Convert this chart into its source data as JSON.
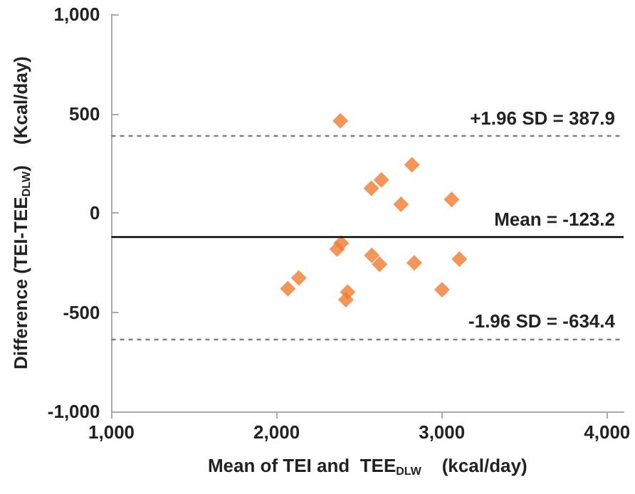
{
  "chart_data": {
    "type": "scatter",
    "xlabel": "Mean of TEI and  TEE$_{DLW}$    (kcal/day)",
    "ylabel": "Difference (TEI-TEE$_{DLW}$)    (Kcal/day)",
    "x": [
      2386,
      2819,
      2634,
      2573,
      2753,
      3059,
      2391,
      2366,
      2576,
      2623,
      2833,
      3106,
      2134,
      2068,
      3001,
      2430,
      2419
    ],
    "series": [
      {
        "color": "#f07c30",
        "values": [
          463,
          242,
          166,
          124,
          43,
          67,
          -152,
          -183,
          -214,
          -259,
          -252,
          -233,
          -328,
          -382,
          -387,
          -399,
          -437
        ]
      }
    ],
    "xlim": [
      1000,
      4100
    ],
    "xticks": [
      {
        "value": 1000,
        "label": "1,000"
      },
      {
        "value": 2000,
        "label": "2,000"
      },
      {
        "value": 3000,
        "label": "3,000"
      },
      {
        "value": 4000,
        "label": "4,000"
      }
    ],
    "ylim": [
      -1000,
      1000
    ],
    "yticks": [
      {
        "value": -1000,
        "label": "-1,000"
      },
      -500,
      0,
      500,
      {
        "value": 1000,
        "label": "1,000"
      }
    ],
    "ref_lines": [
      {
        "axis": "y",
        "value": 387.9,
        "label": "+1.96 SD = 387.9",
        "color": "#808080",
        "line_style": "dashed"
      },
      {
        "axis": "y",
        "value": -123.2,
        "label": "Mean = -123.2",
        "color": "#000000",
        "line_style": "solid"
      },
      {
        "axis": "y",
        "value": -634.4,
        "label": "-1.96 SD = -634.4",
        "color": "#808080",
        "line_style": "dashed"
      }
    ],
    "marker": "diamond",
    "grid": false
  }
}
